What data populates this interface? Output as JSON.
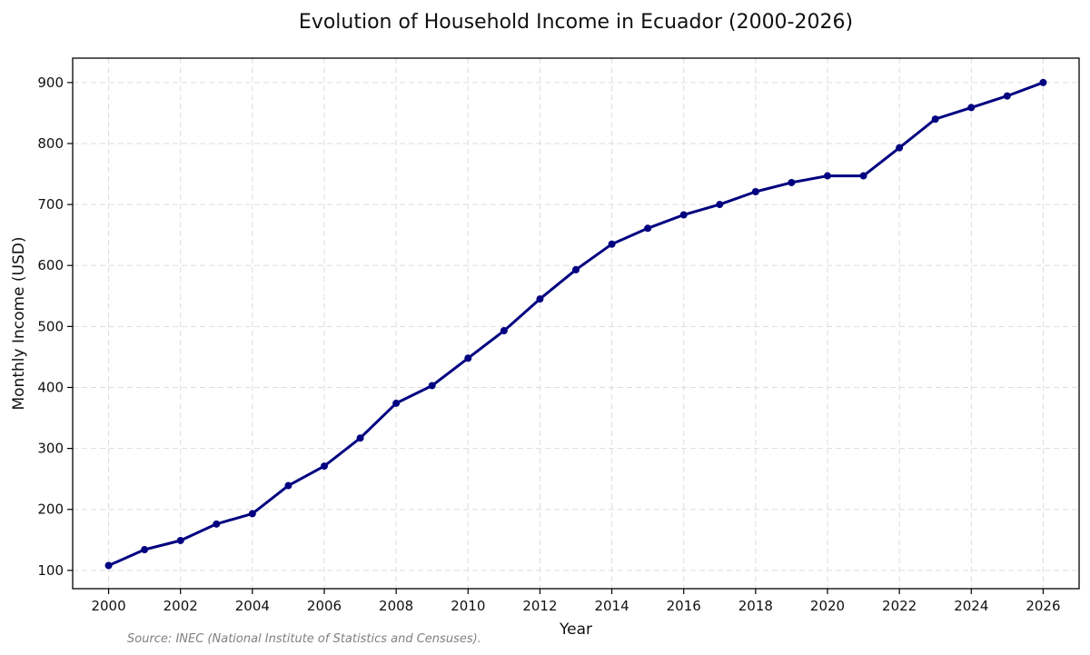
{
  "chart_data": {
    "type": "line",
    "title": "Evolution of Household Income in Ecuador (2000-2026)",
    "xlabel": "Year",
    "ylabel": "Monthly Income (USD)",
    "source": "Source: INEC (National Institute of Statistics and Censuses).",
    "x": [
      2000,
      2001,
      2002,
      2003,
      2004,
      2005,
      2006,
      2007,
      2008,
      2009,
      2010,
      2011,
      2012,
      2013,
      2014,
      2015,
      2016,
      2017,
      2018,
      2019,
      2020,
      2021,
      2022,
      2023,
      2024,
      2025,
      2026
    ],
    "series": [
      {
        "values": [
          108,
          134,
          149,
          176,
          193,
          239,
          271,
          317,
          374,
          403,
          448,
          493,
          545,
          593,
          635,
          661,
          683,
          700,
          721,
          736,
          747,
          747,
          793,
          840,
          859,
          878,
          900
        ],
        "color": "#000080"
      }
    ],
    "xlim": [
      1999,
      2027
    ],
    "ylim": [
      70,
      940
    ],
    "xticks": [
      "2000",
      "2002",
      "2004",
      "2006",
      "2008",
      "2010",
      "2012",
      "2014",
      "2016",
      "2018",
      "2020",
      "2022",
      "2024",
      "2026"
    ],
    "yticks": [
      "100",
      "200",
      "300",
      "400",
      "500",
      "600",
      "700",
      "800",
      "900"
    ],
    "grid": true,
    "grid_style": "dashed"
  }
}
